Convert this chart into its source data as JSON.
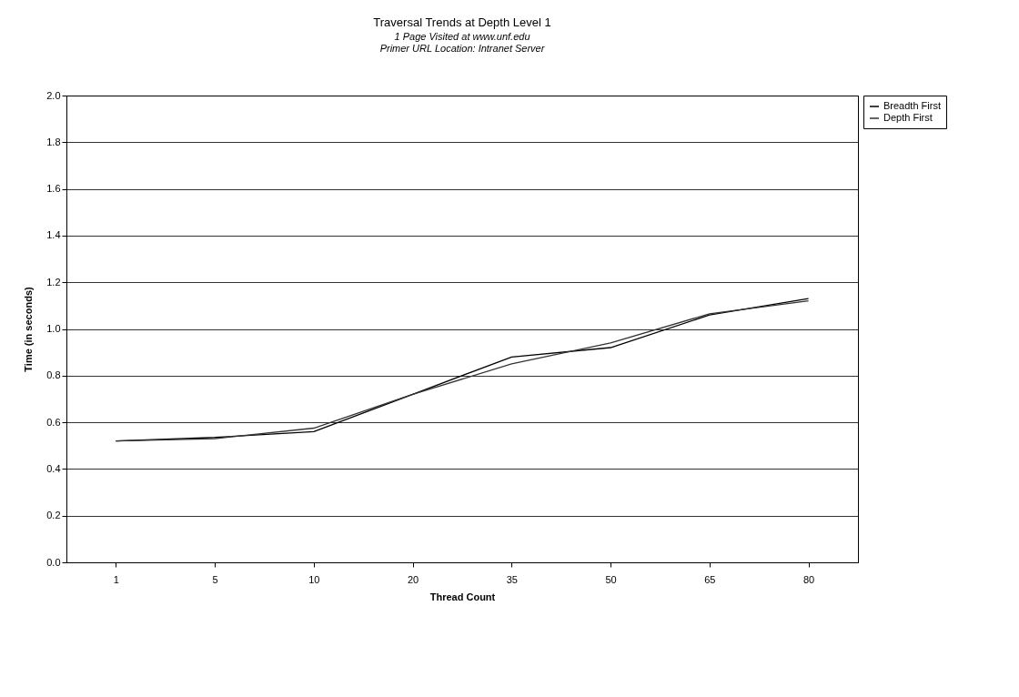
{
  "chart_data": {
    "type": "line",
    "title": "Traversal Trends at Depth Level 1",
    "subtitle": "1 Page Visited at www.unf.edu\nPrimer URL Location: Intranet Server",
    "xlabel": "Thread Count",
    "ylabel": "Time (in seconds)",
    "categories": [
      "1",
      "5",
      "10",
      "20",
      "35",
      "50",
      "65",
      "80"
    ],
    "series": [
      {
        "name": "Breadth First",
        "color": "#000000",
        "values": [
          0.52,
          0.535,
          0.56,
          0.72,
          0.88,
          0.92,
          1.06,
          1.13
        ]
      },
      {
        "name": "Depth First",
        "color": "#333333",
        "values": [
          0.52,
          0.53,
          0.575,
          0.72,
          0.85,
          0.94,
          1.065,
          1.12
        ]
      }
    ],
    "ylim": [
      0,
      2
    ],
    "yticks": [
      {
        "value": 0,
        "label": "0.0"
      },
      {
        "value": 0.2,
        "label": "0.2"
      },
      {
        "value": 0.4,
        "label": "0.4"
      },
      {
        "value": 0.6,
        "label": "0.6"
      },
      {
        "value": 0.8,
        "label": "0.8"
      },
      {
        "value": 1,
        "label": "1.0"
      },
      {
        "value": 1.2,
        "label": "1.2"
      },
      {
        "value": 1.4,
        "label": "1.4"
      },
      {
        "value": 1.6,
        "label": "1.6"
      },
      {
        "value": 1.8,
        "label": "1.8"
      },
      {
        "value": 2,
        "label": "2.0"
      }
    ],
    "grid": "y",
    "legend": "right",
    "marker": "none",
    "line_style": "solid"
  }
}
